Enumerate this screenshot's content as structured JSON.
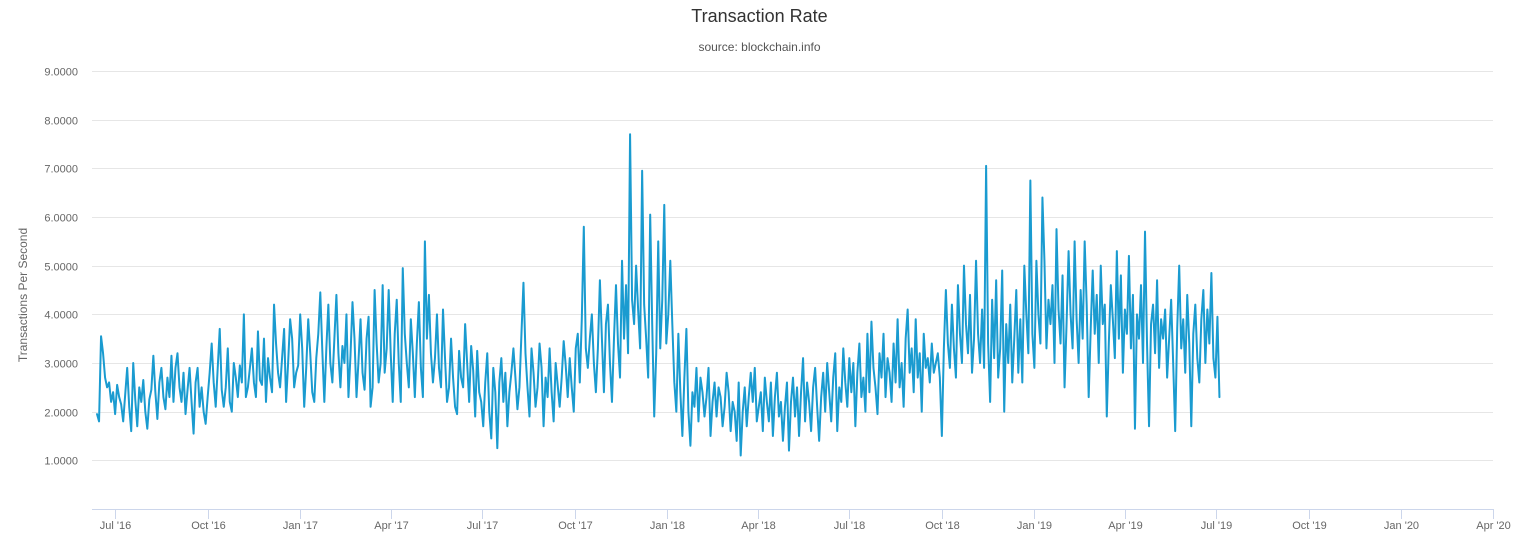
{
  "chart_data": {
    "type": "line",
    "title": "Transaction Rate",
    "subtitle": "source: blockchain.info",
    "xlabel": "",
    "ylabel": "Transactions Per Second",
    "y_ticks": [
      "1.0000",
      "2.0000",
      "3.0000",
      "4.0000",
      "5.0000",
      "6.0000",
      "7.0000",
      "8.0000",
      "9.0000"
    ],
    "ylim": [
      0,
      9
    ],
    "x_ticks": [
      {
        "label": "Jul '16",
        "date": "2016-07-01"
      },
      {
        "label": "Oct '16",
        "date": "2016-10-01"
      },
      {
        "label": "Jan '17",
        "date": "2017-01-01"
      },
      {
        "label": "Apr '17",
        "date": "2017-04-01"
      },
      {
        "label": "Jul '17",
        "date": "2017-07-01"
      },
      {
        "label": "Oct '17",
        "date": "2017-10-01"
      },
      {
        "label": "Jan '18",
        "date": "2018-01-01"
      },
      {
        "label": "Apr '18",
        "date": "2018-04-01"
      },
      {
        "label": "Jul '18",
        "date": "2018-07-01"
      },
      {
        "label": "Oct '18",
        "date": "2018-10-01"
      },
      {
        "label": "Jan '19",
        "date": "2019-01-01"
      },
      {
        "label": "Apr '19",
        "date": "2019-04-01"
      },
      {
        "label": "Jul '19",
        "date": "2019-07-01"
      },
      {
        "label": "Oct '19",
        "date": "2019-10-01"
      },
      {
        "label": "Jan '20",
        "date": "2020-01-01"
      },
      {
        "label": "Apr '20",
        "date": "2020-04-01"
      }
    ],
    "xlim": [
      "2016-06-08",
      "2020-04-01"
    ],
    "grid": true,
    "legend": "none",
    "colors": {
      "line": "#1a9bd0",
      "grid": "#e6e6e6",
      "axis": "#ccd6eb"
    },
    "series": [
      {
        "x_start": "2016-06-13",
        "step_days": 2,
        "values": [
          1.95,
          1.8,
          3.55,
          3.2,
          2.7,
          2.5,
          2.6,
          2.2,
          2.4,
          1.95,
          2.55,
          2.3,
          2.15,
          1.8,
          2.35,
          2.9,
          2.1,
          1.6,
          3.0,
          2.25,
          1.7,
          2.5,
          2.2,
          2.65,
          2.0,
          1.65,
          2.25,
          2.45,
          3.15,
          2.4,
          1.85,
          2.6,
          2.9,
          2.3,
          2.05,
          2.7,
          2.3,
          3.15,
          2.2,
          2.9,
          3.2,
          2.5,
          2.2,
          2.8,
          1.95,
          2.45,
          2.9,
          2.2,
          1.55,
          2.6,
          2.9,
          2.1,
          2.5,
          2.0,
          1.75,
          2.3,
          2.8,
          3.4,
          2.6,
          2.1,
          2.9,
          3.7,
          2.45,
          2.1,
          2.5,
          3.3,
          2.2,
          2.0,
          3.0,
          2.7,
          2.3,
          2.95,
          2.6,
          4.0,
          2.3,
          2.5,
          2.9,
          3.3,
          2.6,
          2.3,
          3.65,
          2.65,
          2.55,
          3.5,
          2.2,
          3.1,
          2.7,
          2.4,
          4.2,
          3.4,
          2.8,
          2.5,
          3.1,
          3.7,
          2.2,
          3.0,
          3.9,
          3.5,
          2.5,
          2.8,
          2.95,
          4.0,
          3.3,
          2.1,
          2.9,
          3.9,
          3.2,
          2.4,
          2.2,
          3.1,
          3.6,
          4.45,
          3.25,
          2.2,
          3.3,
          4.2,
          3.0,
          2.6,
          3.5,
          4.4,
          3.2,
          2.5,
          3.35,
          3.0,
          4.0,
          2.3,
          3.15,
          4.25,
          3.5,
          2.3,
          3.05,
          3.9,
          2.8,
          2.45,
          3.5,
          3.95,
          2.1,
          2.5,
          4.5,
          3.4,
          2.6,
          3.0,
          4.6,
          2.8,
          3.3,
          4.5,
          3.2,
          2.2,
          3.6,
          4.3,
          3.0,
          2.2,
          4.95,
          3.6,
          3.0,
          2.5,
          3.9,
          3.2,
          2.3,
          3.4,
          4.25,
          2.9,
          2.3,
          5.5,
          3.5,
          4.4,
          3.2,
          2.6,
          3.1,
          4.0,
          2.9,
          2.5,
          4.1,
          3.1,
          2.2,
          2.5,
          3.5,
          2.7,
          2.1,
          1.95,
          3.25,
          2.7,
          2.5,
          3.8,
          3.0,
          2.2,
          3.35,
          2.85,
          1.9,
          3.25,
          2.4,
          2.2,
          1.7,
          2.6,
          3.2,
          2.0,
          1.45,
          2.9,
          2.4,
          1.25,
          2.6,
          3.1,
          2.2,
          2.8,
          1.7,
          2.4,
          2.8,
          3.3,
          2.7,
          2.05,
          2.5,
          3.6,
          4.65,
          3.2,
          2.5,
          1.9,
          3.3,
          2.8,
          2.1,
          2.5,
          3.4,
          2.9,
          1.7,
          2.7,
          2.3,
          3.3,
          2.4,
          1.8,
          3.0,
          2.55,
          2.1,
          2.7,
          3.45,
          2.95,
          2.3,
          3.1,
          2.5,
          2.0,
          3.3,
          3.6,
          2.6,
          3.9,
          5.8,
          3.3,
          2.9,
          3.5,
          4.0,
          3.0,
          2.4,
          3.3,
          4.7,
          3.5,
          2.4,
          3.8,
          4.2,
          3.0,
          2.2,
          3.5,
          4.6,
          3.4,
          2.7,
          5.1,
          3.5,
          4.6,
          3.2,
          7.7,
          4.3,
          3.8,
          5.0,
          4.1,
          3.3,
          6.95,
          4.2,
          3.5,
          2.7,
          6.05,
          3.8,
          1.9,
          3.2,
          5.5,
          3.3,
          4.3,
          6.25,
          3.4,
          4.0,
          5.1,
          3.8,
          2.6,
          2.0,
          3.6,
          2.4,
          1.5,
          2.7,
          3.7,
          2.0,
          1.3,
          2.4,
          2.1,
          2.9,
          1.8,
          2.7,
          2.4,
          1.9,
          2.3,
          2.9,
          1.5,
          2.2,
          2.6,
          1.9,
          2.5,
          2.3,
          1.7,
          2.1,
          2.8,
          2.4,
          1.6,
          2.2,
          2.0,
          1.4,
          2.6,
          1.1,
          2.0,
          2.5,
          1.7,
          2.3,
          2.8,
          2.2,
          2.9,
          1.8,
          2.1,
          2.4,
          1.6,
          2.7,
          2.2,
          1.8,
          2.6,
          1.5,
          2.3,
          2.8,
          1.9,
          2.2,
          1.4,
          2.1,
          2.6,
          1.2,
          2.2,
          2.7,
          1.9,
          2.5,
          1.5,
          2.4,
          3.1,
          1.8,
          2.6,
          2.2,
          1.6,
          2.5,
          2.9,
          2.1,
          1.4,
          2.3,
          2.8,
          2.0,
          3.0,
          2.4,
          1.8,
          2.7,
          3.2,
          1.6,
          2.5,
          2.2,
          3.3,
          2.6,
          2.1,
          3.1,
          2.4,
          3.0,
          1.7,
          2.8,
          3.4,
          2.3,
          2.7,
          2.0,
          3.6,
          2.4,
          3.85,
          2.9,
          2.5,
          1.95,
          3.2,
          2.7,
          3.6,
          2.3,
          3.1,
          2.8,
          2.2,
          3.4,
          2.6,
          3.9,
          2.5,
          3.0,
          2.1,
          3.5,
          4.1,
          2.8,
          3.3,
          2.4,
          3.9,
          2.7,
          3.2,
          2.0,
          3.6,
          2.9,
          3.1,
          2.6,
          3.4,
          2.8,
          3.0,
          3.2,
          2.7,
          1.5,
          3.3,
          4.5,
          3.4,
          2.9,
          4.2,
          3.3,
          2.7,
          4.6,
          3.6,
          3.0,
          5.0,
          3.8,
          3.2,
          4.4,
          2.8,
          3.5,
          5.1,
          3.6,
          3.0,
          4.1,
          2.9,
          7.05,
          3.4,
          2.2,
          4.3,
          3.1,
          4.7,
          2.7,
          3.3,
          4.9,
          2.0,
          3.8,
          3.0,
          4.2,
          2.6,
          3.5,
          4.5,
          2.8,
          3.9,
          2.6,
          5.0,
          4.0,
          3.2,
          6.75,
          3.6,
          2.9,
          5.1,
          4.0,
          3.4,
          6.4,
          5.1,
          3.3,
          4.3,
          3.8,
          4.6,
          3.0,
          5.75,
          4.1,
          3.4,
          4.8,
          2.5,
          3.8,
          5.3,
          4.0,
          3.3,
          5.5,
          3.9,
          3.0,
          4.5,
          3.5,
          5.5,
          4.2,
          2.3,
          3.7,
          4.9,
          3.6,
          4.4,
          3.0,
          5.0,
          3.8,
          4.2,
          1.9,
          3.4,
          4.6,
          3.9,
          3.1,
          5.3,
          3.5,
          4.8,
          2.8,
          4.1,
          3.6,
          5.2,
          3.3,
          4.4,
          1.65,
          4.0,
          3.5,
          4.6,
          3.0,
          5.7,
          3.4,
          1.7,
          3.8,
          4.2,
          3.2,
          4.7,
          2.9,
          3.9,
          3.5,
          4.1,
          2.7,
          3.5,
          4.3,
          3.0,
          1.6,
          3.7,
          5.0,
          3.3,
          3.9,
          2.8,
          4.4,
          3.4,
          1.7,
          3.6,
          4.2,
          3.1,
          2.6,
          3.9,
          4.5,
          3.0,
          4.1,
          3.4,
          4.85,
          3.1,
          2.7,
          3.95,
          2.3
        ]
      }
    ]
  }
}
